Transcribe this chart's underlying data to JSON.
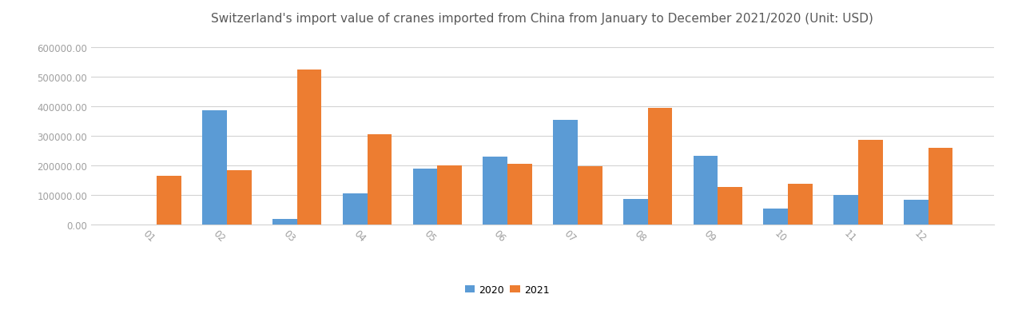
{
  "title": "Switzerland's import value of cranes imported from China from January to December 2021/2020 (Unit: USD)",
  "months": [
    "01",
    "02",
    "03",
    "04",
    "05",
    "06",
    "07",
    "08",
    "09",
    "10",
    "11",
    "12"
  ],
  "values_2020": [
    0,
    385000,
    18000,
    103000,
    188000,
    228000,
    353000,
    85000,
    232000,
    52000,
    100000,
    83000
  ],
  "values_2021": [
    165000,
    183000,
    525000,
    305000,
    200000,
    205000,
    195000,
    393000,
    125000,
    137000,
    285000,
    258000
  ],
  "color_2020": "#5b9bd5",
  "color_2021": "#ed7d31",
  "ylim": [
    0,
    650000
  ],
  "yticks": [
    0,
    100000,
    200000,
    300000,
    400000,
    500000,
    600000
  ],
  "legend_labels": [
    "2020",
    "2021"
  ],
  "title_fontsize": 11,
  "background_color": "#ffffff",
  "grid_color": "#d3d3d3",
  "tick_color": "#a0a0a0"
}
